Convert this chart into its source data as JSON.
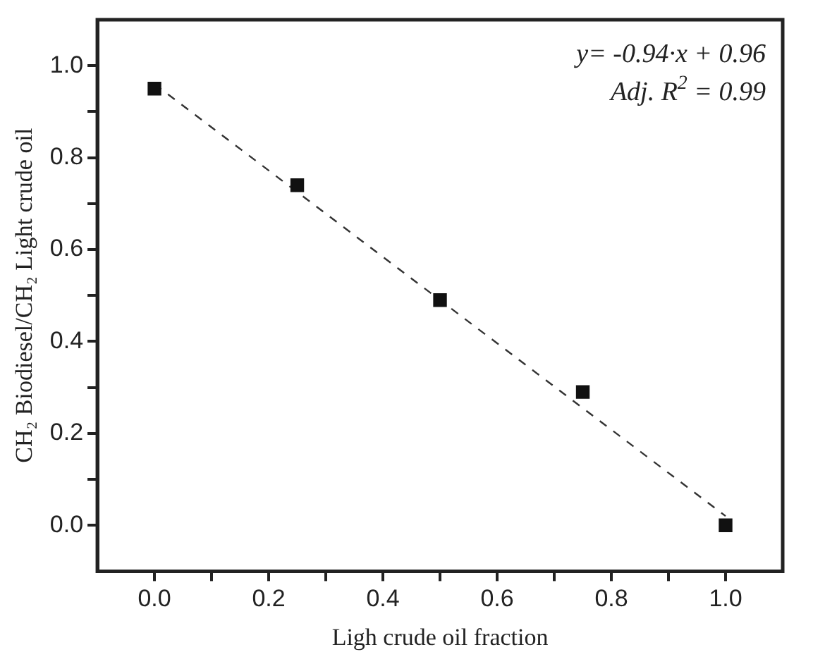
{
  "chart_data": {
    "type": "scatter",
    "xlabel": "Ligh crude oil fraction",
    "ylabel": "CH₂ Biodiesel/CH₂ Light crude oil",
    "x": [
      0,
      0.25,
      0.5,
      0.75,
      1.0
    ],
    "series": [
      {
        "color": "#111111",
        "marker": "square",
        "values": [
          0.95,
          0.74,
          0.49,
          0.29,
          0.0
        ]
      },
      {
        "type": "line",
        "color": "#333333",
        "line_style": "dashed",
        "marker": "none",
        "x": [
          0,
          1.0
        ],
        "values": [
          0.96,
          0.02
        ]
      }
    ],
    "xlim": [
      -0.1,
      1.1
    ],
    "ylim": [
      -0.1,
      1.1
    ],
    "xticks": [
      {
        "value": 0,
        "label": "0.0"
      },
      {
        "value": 0.1,
        "label": null
      },
      0.2,
      {
        "value": 0.3,
        "label": null
      },
      0.4,
      {
        "value": 0.5,
        "label": null
      },
      0.6,
      {
        "value": 0.7,
        "label": null
      },
      0.8,
      {
        "value": 0.9,
        "label": null
      },
      {
        "value": 1.0,
        "label": "1.0"
      }
    ],
    "yticks": [
      {
        "value": 0,
        "label": "0.0"
      },
      {
        "value": 0.1,
        "label": null
      },
      0.2,
      {
        "value": 0.3,
        "label": null
      },
      0.4,
      {
        "value": 0.5,
        "label": null
      },
      0.6,
      {
        "value": 0.7,
        "label": null
      },
      0.8,
      {
        "value": 0.9,
        "label": null
      },
      {
        "value": 1.0,
        "label": "1.0"
      }
    ],
    "annotations": [
      "y= -0.94·x + 0.96",
      "Adj. R$^{2}$ = 0.99"
    ],
    "grid": false,
    "legend": false
  }
}
